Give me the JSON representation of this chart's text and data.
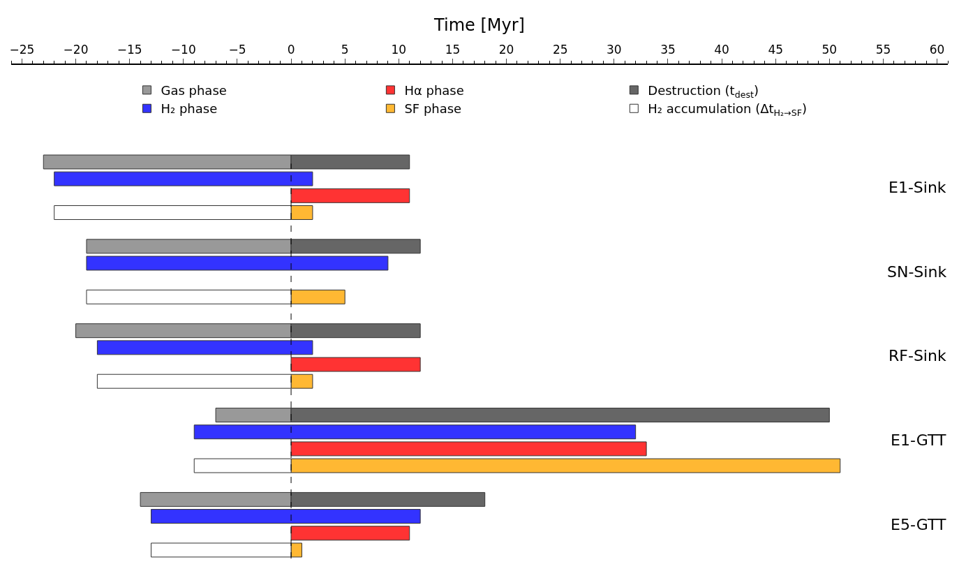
{
  "chart_data": {
    "type": "bar",
    "orientation": "horizontal",
    "xlabel": "Time [Myr]",
    "categories": [
      "E1-Sink",
      "SN-Sink",
      "RF-Sink",
      "E1-GTT",
      "E5-GTT"
    ],
    "xlim": [
      -26,
      61
    ],
    "xticks": [
      -25,
      -20,
      -15,
      -10,
      -5,
      0,
      5,
      10,
      15,
      20,
      25,
      30,
      35,
      40,
      45,
      50,
      55,
      60
    ],
    "series": [
      {
        "name": "Gas phase",
        "color": "#999999",
        "base": [
          -23,
          -19,
          -20,
          -7,
          -14
        ],
        "values": [
          23,
          19,
          20,
          7,
          14
        ]
      },
      {
        "name": "Hα phase",
        "color": "#ff3333",
        "base": [
          0,
          null,
          0,
          0,
          0
        ],
        "values": [
          11,
          null,
          12,
          33,
          11
        ]
      },
      {
        "name": "Destruction (t$_{dest}$)",
        "color": "#666666",
        "base": [
          0,
          0,
          0,
          0,
          0
        ],
        "values": [
          11,
          12,
          12,
          50,
          18
        ]
      },
      {
        "name": "H₂ phase",
        "color": "#3333ff",
        "base": [
          -22,
          -19,
          -18,
          -9,
          -13
        ],
        "values": [
          24,
          28,
          20,
          41,
          25
        ]
      },
      {
        "name": "SF phase",
        "color": "#ffb833",
        "base": [
          0,
          0,
          0,
          0,
          0
        ],
        "values": [
          2,
          5,
          2,
          51,
          1
        ]
      },
      {
        "name": "H₂ accumulation (Δt$_{H₂→SF}$)",
        "color": "#ffffff",
        "base": [
          -22,
          -19,
          -18,
          -9,
          -13
        ],
        "values": [
          22,
          19,
          18,
          9,
          13
        ]
      }
    ],
    "ref_lines": [
      {
        "axis": "x",
        "value": 0,
        "color": "#000000",
        "line_style": "dashed"
      }
    ],
    "legend": "top"
  }
}
